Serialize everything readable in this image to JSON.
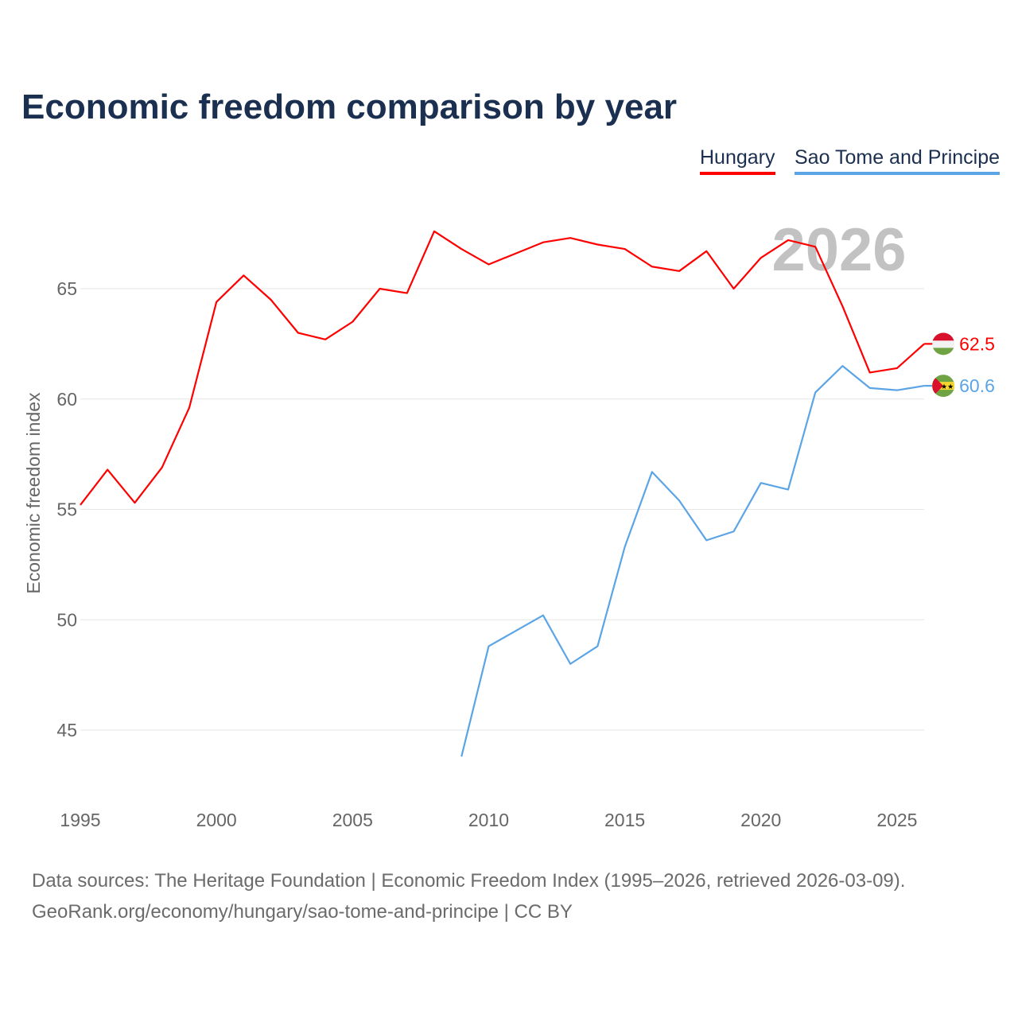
{
  "chart_data": {
    "type": "line",
    "title": "Economic freedom comparison by year",
    "xlabel": "",
    "ylabel": "Economic freedom index",
    "xlim": [
      1995,
      2026
    ],
    "ylim": [
      42.5,
      68
    ],
    "xticks": [
      1995,
      2000,
      2005,
      2010,
      2015,
      2020,
      2025
    ],
    "yticks": [
      45,
      50,
      55,
      60,
      65
    ],
    "grid": true,
    "legend_position": "top-right",
    "watermark_year": "2026",
    "series": [
      {
        "name": "Hungary",
        "color": "#ff0000",
        "end_label": "62.5",
        "x": [
          1995,
          1996,
          1997,
          1998,
          1999,
          2000,
          2001,
          2002,
          2003,
          2004,
          2005,
          2006,
          2007,
          2008,
          2009,
          2010,
          2011,
          2012,
          2013,
          2014,
          2015,
          2016,
          2017,
          2018,
          2019,
          2020,
          2021,
          2022,
          2023,
          2024,
          2025,
          2026
        ],
        "values": [
          55.2,
          56.8,
          55.3,
          56.9,
          59.6,
          64.4,
          65.6,
          64.5,
          63.0,
          62.7,
          63.5,
          65.0,
          64.8,
          67.6,
          66.8,
          66.1,
          66.6,
          67.1,
          67.3,
          67.0,
          66.8,
          66.0,
          65.8,
          66.7,
          65.0,
          66.4,
          67.2,
          66.9,
          64.2,
          61.2,
          61.4,
          62.5
        ]
      },
      {
        "name": "Sao Tome and Principe",
        "color": "#5ba4e6",
        "end_label": "60.6",
        "x": [
          2009,
          2010,
          2012,
          2013,
          2014,
          2015,
          2016,
          2017,
          2018,
          2019,
          2020,
          2021,
          2022,
          2023,
          2024,
          2025,
          2026
        ],
        "values": [
          43.8,
          48.8,
          50.2,
          48.0,
          48.8,
          53.3,
          56.7,
          55.4,
          53.6,
          54.0,
          56.2,
          55.9,
          60.3,
          61.5,
          60.5,
          60.4,
          60.6
        ]
      }
    ]
  },
  "source_line1": "Data sources: The Heritage Foundation | Economic Freedom Index (1995–2026, retrieved 2026-03-09).",
  "source_line2": "GeoRank.org/economy/hungary/sao-tome-and-principe | CC BY"
}
